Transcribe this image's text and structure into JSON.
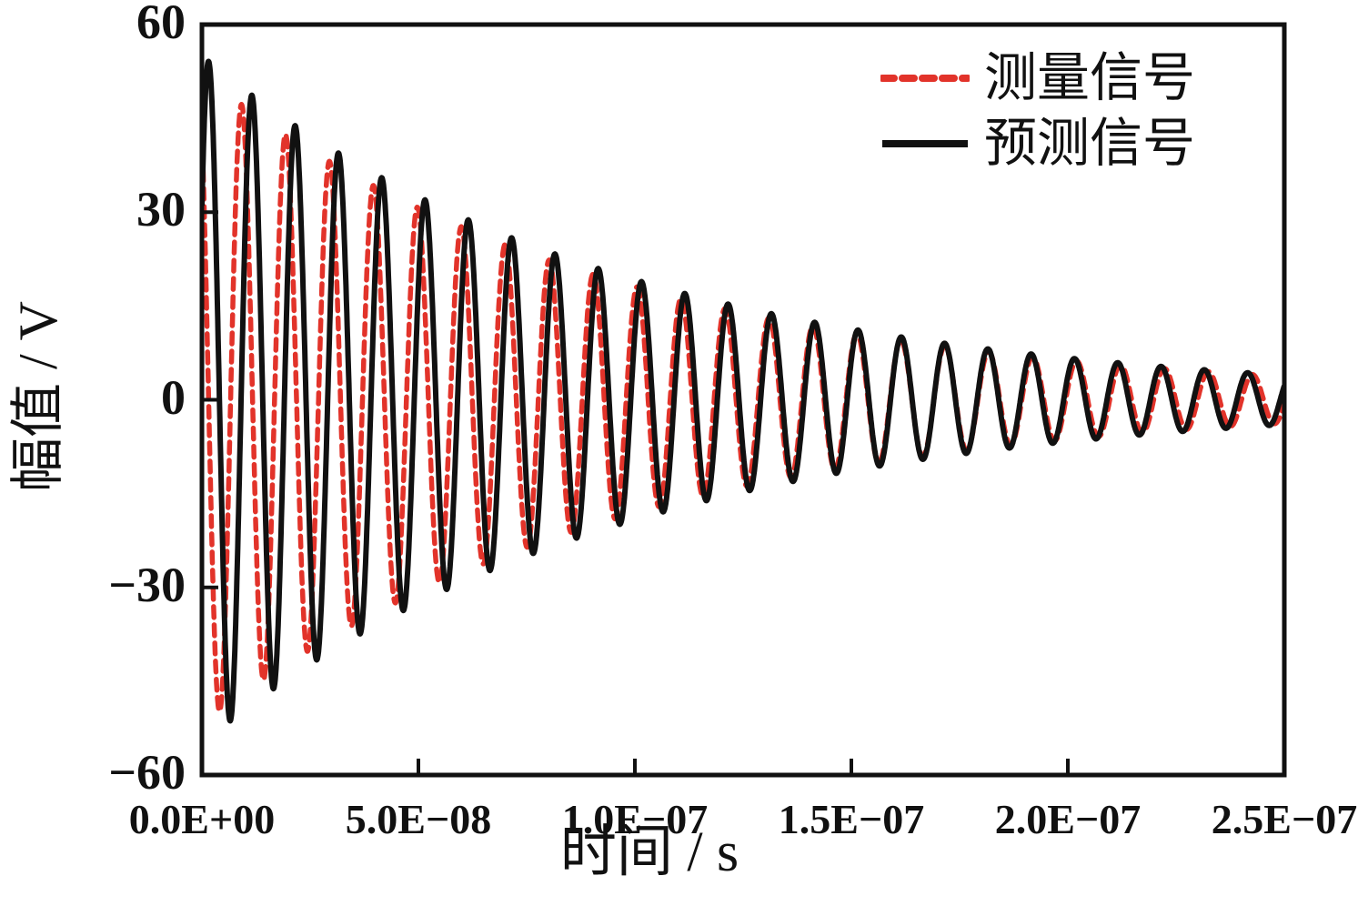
{
  "figure": {
    "background": "#ffffff"
  },
  "chart_data": {
    "type": "line",
    "title": "",
    "xlabel": "时间 / s",
    "ylabel": "幅值 / V",
    "xlim": [
      0,
      2.5e-07
    ],
    "ylim": [
      -60,
      60
    ],
    "grid": false,
    "legend": {
      "position": "top-right-inside"
    },
    "x_ticks": [
      {
        "value": 0,
        "label": "0.0E+00"
      },
      {
        "value": 5e-08,
        "label": "5.0E−08"
      },
      {
        "value": 1e-07,
        "label": "1.0E−07"
      },
      {
        "value": 1.5e-07,
        "label": "1.5E−07"
      },
      {
        "value": 2e-07,
        "label": "2.0E−07"
      },
      {
        "value": 2.5e-07,
        "label": "2.5E−07"
      }
    ],
    "y_ticks": [
      {
        "value": 60,
        "label": "60"
      },
      {
        "value": 30,
        "label": "30"
      },
      {
        "value": 0,
        "label": "0"
      },
      {
        "value": -30,
        "label": "−30"
      },
      {
        "value": -60,
        "label": "−60"
      }
    ],
    "series": [
      {
        "name": "测量信号",
        "color": "#e2332a",
        "line_style": "dashed",
        "line_width": 5.5,
        "model": "damped_sine",
        "amplitude_v": 52,
        "decay_tau_s": 9.5e-08,
        "frequency_hz": 98500000.0,
        "phase_rad": -4.1
      },
      {
        "name": "预测信号",
        "color": "#111111",
        "line_style": "solid",
        "line_width": 6,
        "model": "damped_sine",
        "amplitude_v": 55,
        "decay_tau_s": 9.5e-08,
        "frequency_hz": 100000000.0,
        "phase_rad": 0.6
      }
    ]
  }
}
